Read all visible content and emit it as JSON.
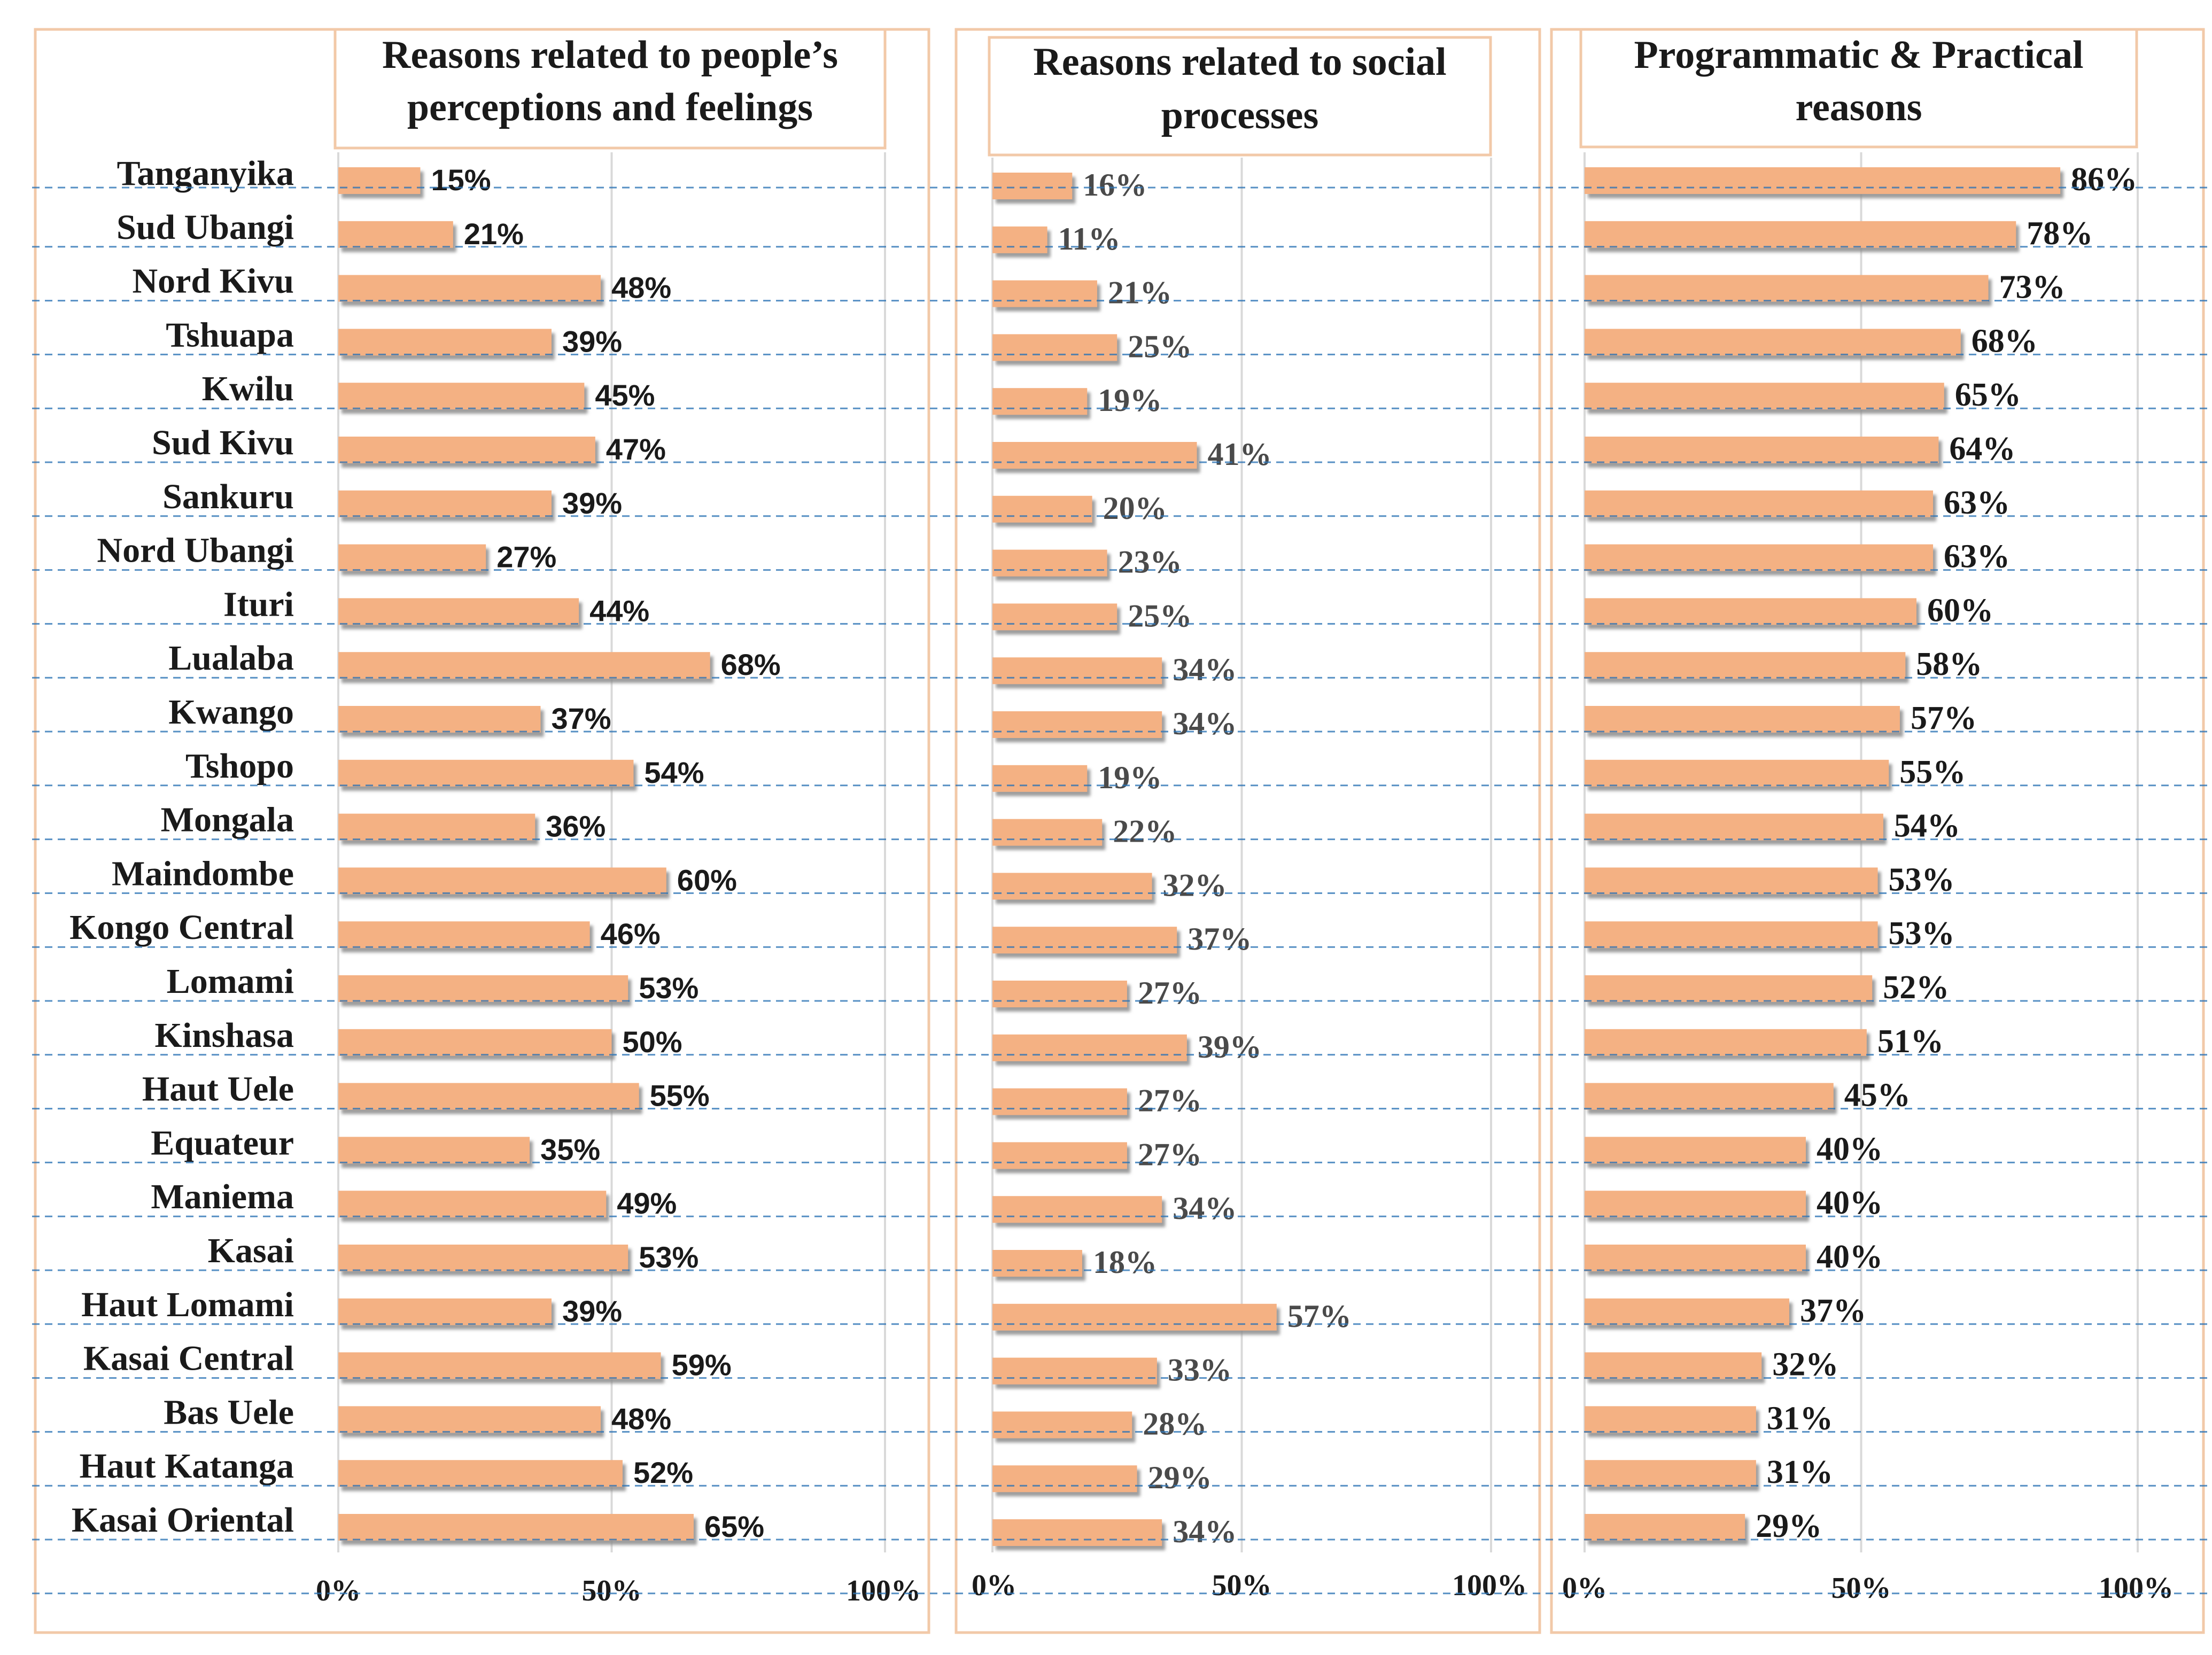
{
  "colors": {
    "bar": "#f4b183",
    "bar_shadow": "#9a9a9a",
    "frame": "#f2c9a8",
    "dashed": "#2e75b6",
    "grid": "#d9d9d9"
  },
  "chart_data": [
    {
      "type": "bar",
      "orientation": "horizontal",
      "title_lines": [
        "Reasons related to people’s",
        "perceptions  and feelings"
      ],
      "categories": [
        "Tanganyika",
        "Sud Ubangi",
        "Nord Kivu",
        "Tshuapa",
        "Kwilu",
        "Sud Kivu",
        "Sankuru",
        "Nord Ubangi",
        "Ituri",
        "Lualaba",
        "Kwango",
        "Tshopo",
        "Mongala",
        "Maindombe",
        "Kongo Central",
        "Lomami",
        "Kinshasa",
        "Haut Uele",
        "Equateur",
        "Maniema",
        "Kasai",
        "Haut Lomami",
        "Kasai Central",
        "Bas Uele",
        "Haut Katanga",
        "Kasai Oriental"
      ],
      "values": [
        15,
        21,
        48,
        39,
        45,
        47,
        39,
        27,
        44,
        68,
        37,
        54,
        36,
        60,
        46,
        53,
        50,
        55,
        35,
        49,
        53,
        39,
        59,
        48,
        52,
        65
      ],
      "value_labels": [
        "15%",
        "21%",
        "48%",
        "39%",
        "45%",
        "47%",
        "39%",
        "27%",
        "44%",
        "68%",
        "37%",
        "54%",
        "36%",
        "60%",
        "46%",
        "53%",
        "50%",
        "55%",
        "35%",
        "49%",
        "53%",
        "39%",
        "59%",
        "48%",
        "52%",
        "65%"
      ],
      "xlim": [
        0,
        100
      ],
      "xticks": [
        "0%",
        "50%",
        "100%"
      ],
      "grid": true
    },
    {
      "type": "bar",
      "orientation": "horizontal",
      "title_lines": [
        "Reasons related to social",
        "processes"
      ],
      "categories": [
        "Tanganyika",
        "Sud Ubangi",
        "Nord Kivu",
        "Tshuapa",
        "Kwilu",
        "Sud Kivu",
        "Sankuru",
        "Nord Ubangi",
        "Ituri",
        "Lualaba",
        "Kwango",
        "Tshopo",
        "Mongala",
        "Maindombe",
        "Kongo Central",
        "Lomami",
        "Kinshasa",
        "Haut Uele",
        "Equateur",
        "Maniema",
        "Kasai",
        "Haut Lomami",
        "Kasai Central",
        "Bas Uele",
        "Haut Katanga",
        "Kasai Oriental"
      ],
      "values": [
        16,
        11,
        21,
        25,
        19,
        41,
        20,
        23,
        25,
        34,
        34,
        19,
        22,
        32,
        37,
        27,
        39,
        27,
        27,
        34,
        18,
        57,
        33,
        28,
        29,
        34
      ],
      "value_labels": [
        "16%",
        "11%",
        "21%",
        "25%",
        "19%",
        "41%",
        "20%",
        "23%",
        "25%",
        "34%",
        "34%",
        "19%",
        "22%",
        "32%",
        "37%",
        "27%",
        "39%",
        "27%",
        "27%",
        "34%",
        "18%",
        "57%",
        "33%",
        "28%",
        "29%",
        "34%"
      ],
      "xlim": [
        0,
        100
      ],
      "xticks": [
        "0%",
        "50%",
        "100%"
      ],
      "grid": true
    },
    {
      "type": "bar",
      "orientation": "horizontal",
      "title_lines": [
        "Programmatic  & Practical",
        "reasons"
      ],
      "values": [
        86,
        78,
        73,
        68,
        65,
        64,
        63,
        63,
        60,
        58,
        57,
        55,
        54,
        53,
        53,
        52,
        51,
        45,
        40,
        40,
        40,
        37,
        32,
        31,
        31,
        29
      ],
      "value_labels": [
        "86%",
        "78%",
        "73%",
        "68%",
        "65%",
        "64%",
        "63%",
        "63%",
        "60%",
        "58%",
        "57%",
        "55%",
        "54%",
        "53%",
        "53%",
        "52%",
        "51%",
        "45%",
        "40%",
        "40%",
        "40%",
        "37%",
        "32%",
        "31%",
        "31%",
        "29%"
      ],
      "xlim": [
        0,
        100
      ],
      "xticks": [
        "0%",
        "50%",
        "100%"
      ],
      "grid": true
    }
  ]
}
